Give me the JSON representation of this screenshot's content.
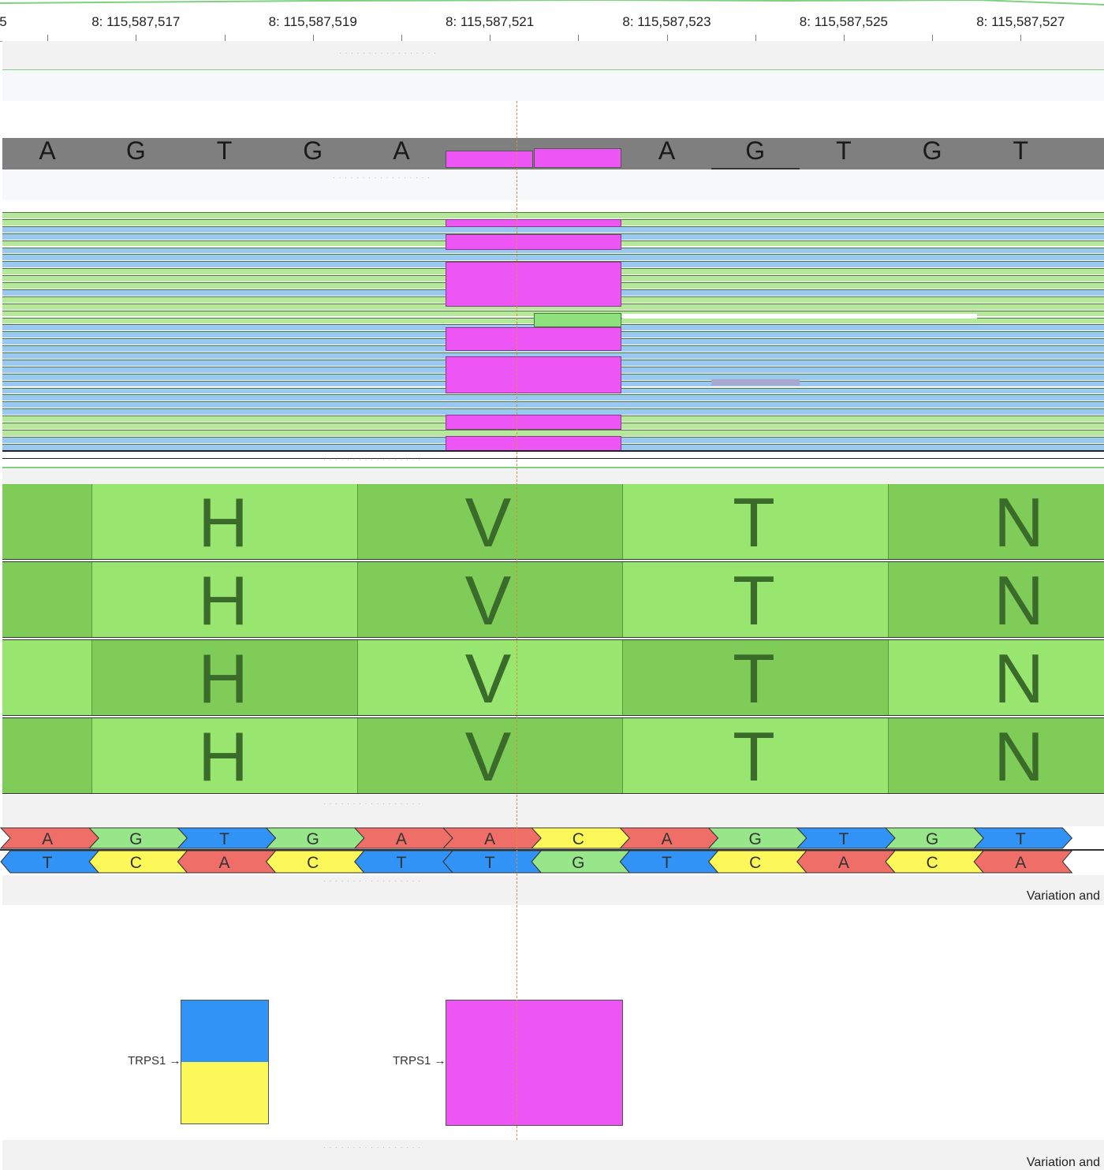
{
  "ruler": {
    "labels": [
      {
        "text": "5",
        "col": 0
      },
      {
        "text": "8: 115,587,517",
        "col": 1
      },
      {
        "text": "8: 115,587,519",
        "col": 3
      },
      {
        "text": "8: 115,587,521",
        "col": 5
      },
      {
        "text": "8: 115,587,523",
        "col": 7
      },
      {
        "text": "8: 115,587,525",
        "col": 9
      },
      {
        "text": "8: 115,587,527",
        "col": 11
      }
    ]
  },
  "reference": {
    "bases": [
      "A",
      "G",
      "T",
      "G",
      "A",
      "",
      "",
      "A",
      "G",
      "T",
      "G",
      "T"
    ],
    "insert_color": "#ee55f5",
    "track_color": "#7f7f7f"
  },
  "reads": {
    "green": "#b5e89a",
    "blue": "#99c8f0",
    "insertion_color": "#ee55f5",
    "rows": [
      "g",
      "g",
      "b",
      "b",
      "g",
      "b",
      "b",
      "b",
      "g",
      "g",
      "g",
      "b",
      "g",
      "g",
      "g",
      "g",
      "b",
      "b",
      "b",
      "b",
      "b",
      "b",
      "b",
      "b",
      "b",
      "b",
      "b",
      "b",
      "b",
      "g",
      "g",
      "g",
      "b",
      "b"
    ]
  },
  "protein": {
    "light": "#98e66f",
    "dark": "#7fcd58",
    "text_color": "#3b6b2a",
    "rows": [
      {
        "labels": [
          "H",
          "V",
          "T",
          "N"
        ],
        "shade": [
          "d",
          "l",
          "d",
          "l",
          "d"
        ]
      },
      {
        "labels": [
          "H",
          "V",
          "T",
          "N"
        ],
        "shade": [
          "d",
          "l",
          "d",
          "l",
          "d"
        ]
      },
      {
        "labels": [
          "H",
          "V",
          "T",
          "N"
        ],
        "shade": [
          "l",
          "d",
          "l",
          "d",
          "l"
        ]
      },
      {
        "labels": [
          "H",
          "V",
          "T",
          "N"
        ],
        "shade": [
          "d",
          "l",
          "d",
          "l",
          "d"
        ]
      }
    ]
  },
  "dna": {
    "top": [
      "A",
      "G",
      "T",
      "G",
      "A",
      "A",
      "C",
      "A",
      "G",
      "T",
      "G",
      "T"
    ],
    "bottom": [
      "T",
      "C",
      "A",
      "C",
      "T",
      "T",
      "G",
      "T",
      "C",
      "A",
      "C",
      "A"
    ],
    "colors": {
      "A": "#ef6e68",
      "C": "#fcf85a",
      "G": "#98e68a",
      "T": "#3093f5"
    }
  },
  "tracks": {
    "title1": "Variation and",
    "title2": "Variation and"
  },
  "genes": [
    {
      "label": "TRPS1",
      "top_color": "#3093f5",
      "bottom_color": "#fcf85a"
    },
    {
      "label": "TRPS1",
      "fill_color": "#ee55f5"
    }
  ]
}
